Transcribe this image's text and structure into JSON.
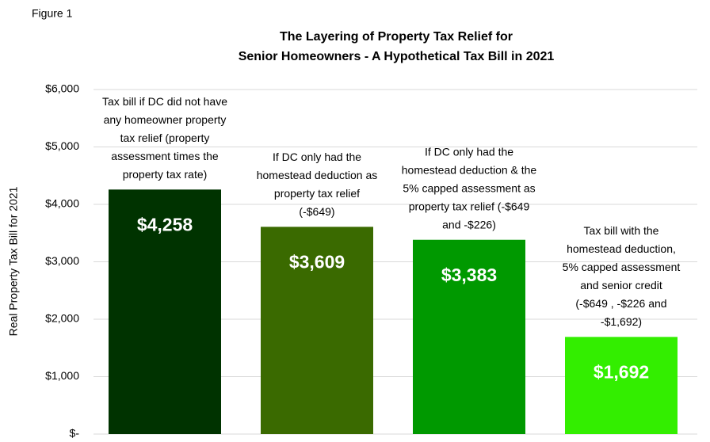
{
  "figure_label": "Figure 1",
  "chart_data": {
    "type": "bar",
    "title": [
      "The Layering of Property Tax Relief for",
      "Senior Homeowners - A Hypothetical Tax Bill in 2021"
    ],
    "y_label": "Real Property Tax Bill for 2021",
    "categories": [
      null,
      null,
      null,
      null
    ],
    "values": [
      4258,
      3609,
      3383,
      1692
    ],
    "value_labels": [
      "$4,258",
      "$3,609",
      "$3,383",
      "$1,692"
    ],
    "colors": [
      "#003300",
      "#3a6a00",
      "#009900",
      "#33ee00"
    ],
    "annotations": [
      [
        "Tax bill if DC did not have",
        "any homeowner property",
        "tax relief (property",
        "assessment times the",
        "property tax rate)"
      ],
      [
        "If DC only had the",
        "homestead deduction as",
        "property tax relief",
        "(-$649)"
      ],
      [
        "If DC only had the",
        "homestead deduction & the",
        "5% capped assessment as",
        "property tax relief (-$649",
        "and -$226)"
      ],
      [
        "Tax bill with the",
        "homestead deduction,",
        "5% capped assessment",
        "and senior credit",
        "(-$649 , -$226 and",
        "-$1,692)"
      ]
    ],
    "ylim": [
      0,
      6000
    ],
    "yticks": [
      {
        "value": 0,
        "label": "$-"
      },
      {
        "value": 1000,
        "label": "$1,000"
      },
      {
        "value": 2000,
        "label": "$2,000"
      },
      {
        "value": 3000,
        "label": "$3,000"
      },
      {
        "value": 4000,
        "label": "$4,000"
      },
      {
        "value": 5000,
        "label": "$5,000"
      },
      {
        "value": 6000,
        "label": "$6,000"
      }
    ],
    "grid": true
  }
}
